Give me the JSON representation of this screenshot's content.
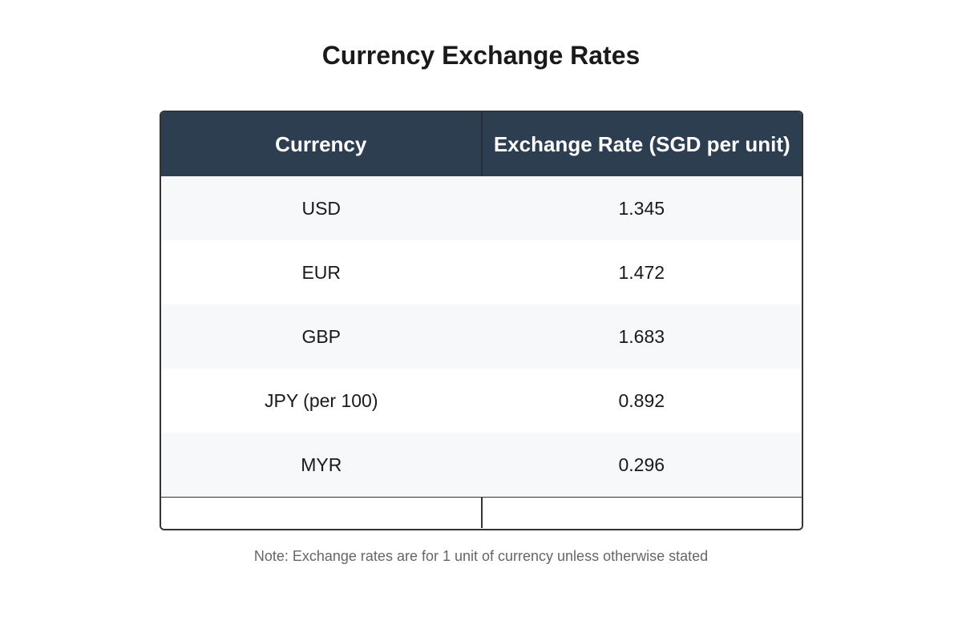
{
  "title": "Currency Exchange Rates",
  "note": "Note: Exchange rates are for 1 unit of currency unless otherwise stated",
  "colors": {
    "header_bg": "#2c3e50",
    "header_text": "#ffffff",
    "row_alt_bg": "#f7f8fa",
    "border": "#333333"
  },
  "chart_data": {
    "type": "table",
    "title": "Currency Exchange Rates",
    "columns": [
      "Currency",
      "Exchange Rate (SGD per unit)"
    ],
    "rows": [
      [
        "USD",
        "1.345"
      ],
      [
        "EUR",
        "1.472"
      ],
      [
        "GBP",
        "1.683"
      ],
      [
        "JPY (per 100)",
        "0.892"
      ],
      [
        "MYR",
        "0.296"
      ]
    ]
  }
}
